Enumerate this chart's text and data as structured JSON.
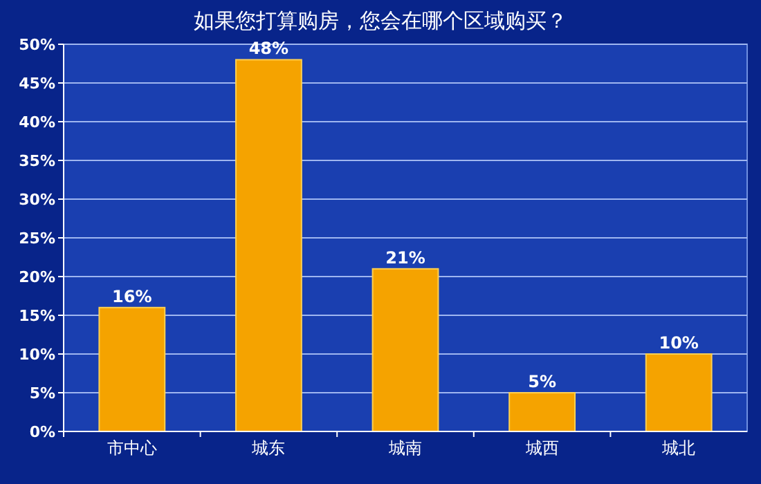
{
  "chart_data": {
    "type": "bar",
    "title": "如果您打算购房，您会在哪个区域购买？",
    "categories": [
      "市中心",
      "城东",
      "城南",
      "城西",
      "城北"
    ],
    "values": [
      16,
      48,
      21,
      5,
      10
    ],
    "value_labels": [
      "16%",
      "48%",
      "21%",
      "5%",
      "10%"
    ],
    "color": "#f5a300",
    "ylim": [
      0,
      50
    ],
    "yticks": [
      {
        "value": 0,
        "label": "0%"
      },
      {
        "value": 5,
        "label": "5%"
      },
      {
        "value": 10,
        "label": "10%"
      },
      {
        "value": 15,
        "label": "15%"
      },
      {
        "value": 20,
        "label": "20%"
      },
      {
        "value": 25,
        "label": "25%"
      },
      {
        "value": 30,
        "label": "30%"
      },
      {
        "value": 35,
        "label": "35%"
      },
      {
        "value": 40,
        "label": "40%"
      },
      {
        "value": 45,
        "label": "45%"
      },
      {
        "value": 50,
        "label": "50%"
      }
    ],
    "grid": "y"
  }
}
